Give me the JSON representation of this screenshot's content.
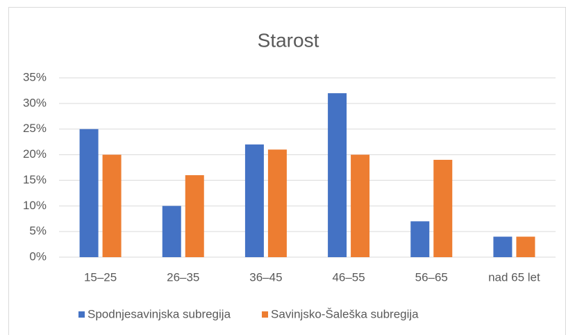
{
  "chart_data": {
    "type": "bar",
    "title": "Starost",
    "categories": [
      "15–25",
      "26–35",
      "36–45",
      "46–55",
      "56–65",
      "nad 65 let"
    ],
    "series": [
      {
        "name": "Spodnjesavinjska subregija",
        "color": "#4472c4",
        "values": [
          25,
          10,
          22,
          32,
          7,
          4
        ]
      },
      {
        "name": "Savinjsko-Šaleška subregija",
        "color": "#ed7d31",
        "values": [
          20,
          16,
          21,
          20,
          19,
          4
        ]
      }
    ],
    "ylim": [
      0,
      35
    ],
    "yticks": [
      {
        "value": 0,
        "label": "0%"
      },
      {
        "value": 5,
        "label": "5%"
      },
      {
        "value": 10,
        "label": "10%"
      },
      {
        "value": 15,
        "label": "15%"
      },
      {
        "value": 20,
        "label": "20%"
      },
      {
        "value": 25,
        "label": "25%"
      },
      {
        "value": 30,
        "label": "30%"
      },
      {
        "value": 35,
        "label": "35%"
      }
    ],
    "grid": true,
    "legend": "bottom"
  }
}
